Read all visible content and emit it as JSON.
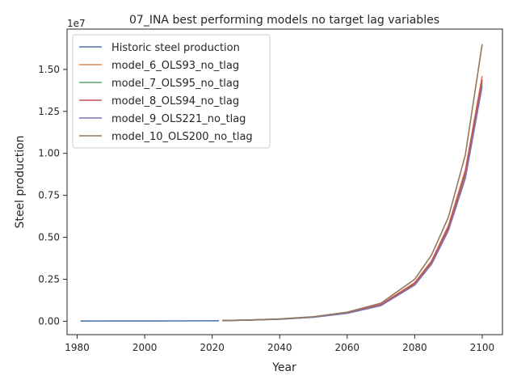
{
  "chart_data": {
    "type": "line",
    "title": "07_INA best performing models no target lag variables",
    "xlabel": "Year",
    "ylabel": "Steel production",
    "y_offset_label": "1e7",
    "xlim": [
      1977,
      2106
    ],
    "ylim": [
      -800000,
      17400000
    ],
    "x_ticks": [
      1980,
      2000,
      2020,
      2040,
      2060,
      2080,
      2100
    ],
    "y_ticks": [
      0,
      2500000,
      5000000,
      7500000,
      10000000,
      12500000,
      15000000
    ],
    "y_tick_labels": [
      "0.00",
      "0.25",
      "0.50",
      "0.75",
      "1.00",
      "1.25",
      "1.50"
    ],
    "legend_position": "upper-left",
    "grid": false,
    "series": [
      {
        "name": "Historic steel production",
        "color": "#4c72b0",
        "x": [
          1981,
          1990,
          2000,
          2010,
          2022
        ],
        "y": [
          10000,
          12000,
          15000,
          20000,
          30000
        ]
      },
      {
        "name": "model_6_OLS93_no_tlag",
        "color": "#dd8452",
        "x": [
          2023,
          2030,
          2040,
          2050,
          2060,
          2070,
          2080,
          2085,
          2090,
          2095,
          2100
        ],
        "y": [
          40000,
          60000,
          130000,
          250000,
          500000,
          1000000,
          2300000,
          3600000,
          5700000,
          9000000,
          14600000
        ]
      },
      {
        "name": "model_7_OLS95_no_tlag",
        "color": "#55a868",
        "x": [
          2023,
          2030,
          2040,
          2050,
          2060,
          2070,
          2080,
          2085,
          2090,
          2095,
          2100
        ],
        "y": [
          40000,
          60000,
          125000,
          240000,
          480000,
          950000,
          2200000,
          3500000,
          5500000,
          8700000,
          14200000
        ]
      },
      {
        "name": "model_8_OLS94_no_tlag",
        "color": "#c44e52",
        "x": [
          2023,
          2030,
          2040,
          2050,
          2060,
          2070,
          2080,
          2085,
          2090,
          2095,
          2100
        ],
        "y": [
          40000,
          60000,
          128000,
          245000,
          490000,
          980000,
          2250000,
          3550000,
          5600000,
          8850000,
          14400000
        ]
      },
      {
        "name": "model_9_OLS221_no_tlag",
        "color": "#8172b3",
        "x": [
          2023,
          2030,
          2040,
          2050,
          2060,
          2070,
          2080,
          2085,
          2090,
          2095,
          2100
        ],
        "y": [
          40000,
          60000,
          122000,
          235000,
          470000,
          930000,
          2150000,
          3400000,
          5400000,
          8500000,
          14000000
        ]
      },
      {
        "name": "model_10_OLS200_no_tlag",
        "color": "#937860",
        "x": [
          2023,
          2030,
          2040,
          2050,
          2060,
          2070,
          2080,
          2085,
          2090,
          2095,
          2100
        ],
        "y": [
          40000,
          65000,
          140000,
          270000,
          540000,
          1080000,
          2500000,
          3950000,
          6200000,
          9900000,
          16500000
        ]
      }
    ]
  }
}
